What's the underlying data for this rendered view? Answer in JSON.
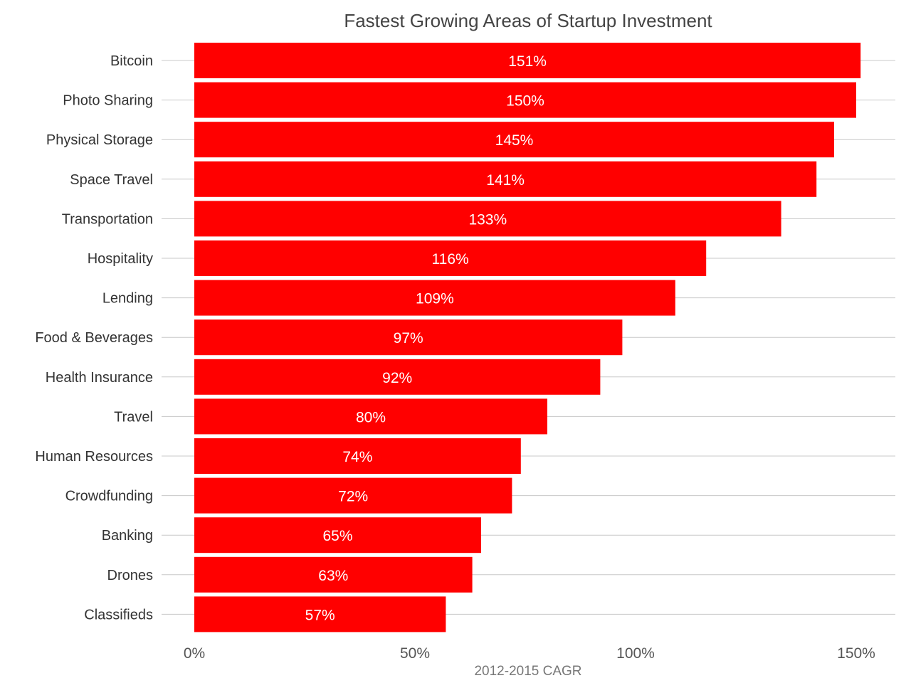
{
  "chart_data": {
    "type": "bar",
    "orientation": "horizontal",
    "title": "Fastest Growing Areas of Startup Investment",
    "xlabel": "2012-2015 CAGR",
    "ylabel": "",
    "xlim": [
      0,
      160
    ],
    "xticks": [
      0,
      50,
      100,
      150
    ],
    "xtick_labels": [
      "0%",
      "50%",
      "100%",
      "150%"
    ],
    "grid": "horizontal lines at each category",
    "categories": [
      "Bitcoin",
      "Photo Sharing",
      "Physical Storage",
      "Space Travel",
      "Transportation",
      "Hospitality",
      "Lending",
      "Food & Beverages",
      "Health Insurance",
      "Travel",
      "Human Resources",
      "Crowdfunding",
      "Banking",
      "Drones",
      "Classifieds"
    ],
    "values": [
      151,
      150,
      145,
      141,
      133,
      116,
      109,
      97,
      92,
      80,
      74,
      72,
      65,
      63,
      57
    ],
    "value_labels": [
      "151%",
      "150%",
      "145%",
      "141%",
      "133%",
      "116%",
      "109%",
      "97%",
      "92%",
      "80%",
      "74%",
      "72%",
      "65%",
      "63%",
      "57%"
    ],
    "colors": {
      "bar": "#ff0000",
      "grid": "#c8c8c8",
      "background": "#ffffff"
    }
  }
}
